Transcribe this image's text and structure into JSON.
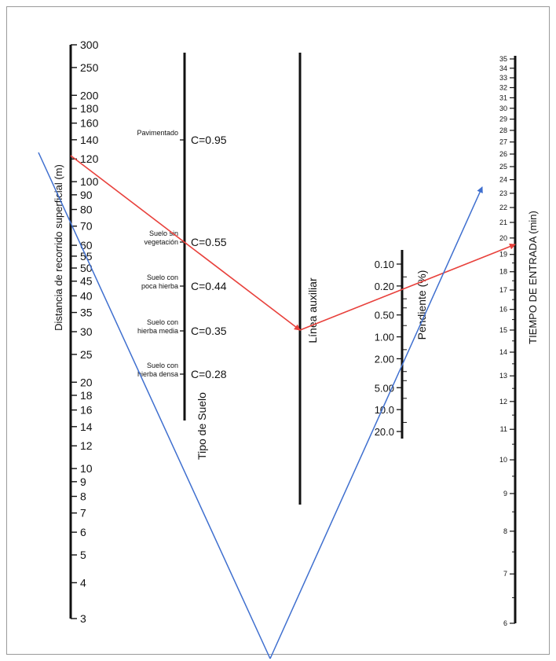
{
  "axes": {
    "distance": {
      "title": "Distancia de recorrido superficial (m)",
      "ticks": [
        {
          "v": 300,
          "label": "300"
        },
        {
          "v": 250,
          "label": "250"
        },
        {
          "v": 200,
          "label": "200"
        },
        {
          "v": 180,
          "label": "180"
        },
        {
          "v": 160,
          "label": "160"
        },
        {
          "v": 140,
          "label": "140"
        },
        {
          "v": 120,
          "label": "120"
        },
        {
          "v": 100,
          "label": "100"
        },
        {
          "v": 90,
          "label": "90"
        },
        {
          "v": 80,
          "label": "80"
        },
        {
          "v": 70,
          "label": "70"
        },
        {
          "v": 60,
          "label": "60"
        },
        {
          "v": 55,
          "label": "55"
        },
        {
          "v": 50,
          "label": "50"
        },
        {
          "v": 45,
          "label": "45"
        },
        {
          "v": 40,
          "label": "40"
        },
        {
          "v": 35,
          "label": "35"
        },
        {
          "v": 30,
          "label": "30"
        },
        {
          "v": 25,
          "label": "25"
        },
        {
          "v": 20,
          "label": "20"
        },
        {
          "v": 18,
          "label": "18"
        },
        {
          "v": 16,
          "label": "16"
        },
        {
          "v": 14,
          "label": "14"
        },
        {
          "v": 12,
          "label": "12"
        },
        {
          "v": 10,
          "label": "10"
        },
        {
          "v": 9,
          "label": "9"
        },
        {
          "v": 8,
          "label": "8"
        },
        {
          "v": 7,
          "label": "7"
        },
        {
          "v": 6,
          "label": "6"
        },
        {
          "v": 5,
          "label": "5"
        },
        {
          "v": 4,
          "label": "4"
        },
        {
          "v": 3,
          "label": "3"
        }
      ]
    },
    "soil": {
      "title": "Tipo de Suelo",
      "items": [
        {
          "name_lines": [
            "Pavimentado"
          ],
          "c": "C=0.95"
        },
        {
          "name_lines": [
            "Suelo sin",
            "vegetación"
          ],
          "c": "C=0.55"
        },
        {
          "name_lines": [
            "Suelo con",
            "poca hierba"
          ],
          "c": "C=0.44"
        },
        {
          "name_lines": [
            "Suelo con",
            "hierba media"
          ],
          "c": "C=0.35"
        },
        {
          "name_lines": [
            "Suelo con",
            "hierba densa"
          ],
          "c": "C=0.28"
        }
      ]
    },
    "auxiliary": {
      "title": "Línea auxiliar"
    },
    "slope": {
      "title": "Pendiente (%)",
      "ticks": [
        {
          "v": 0.1,
          "label": "0.10"
        },
        {
          "v": 0.2,
          "label": "0.20"
        },
        {
          "v": 0.5,
          "label": "0.50"
        },
        {
          "v": 1,
          "label": "1.00"
        },
        {
          "v": 2,
          "label": "2.00"
        },
        {
          "v": 5,
          "label": "5.00"
        },
        {
          "v": 10,
          "label": "10.0"
        },
        {
          "v": 20,
          "label": "20.0"
        }
      ]
    },
    "time": {
      "title": "TIEMPO DE ENTRADA (min)",
      "ticks": [
        {
          "v": 6,
          "label": "6"
        },
        {
          "v": 7,
          "label": "7"
        },
        {
          "v": 8,
          "label": "8"
        },
        {
          "v": 9,
          "label": "9"
        },
        {
          "v": 10,
          "label": "10"
        },
        {
          "v": 11,
          "label": "11"
        },
        {
          "v": 12,
          "label": "12"
        },
        {
          "v": 13,
          "label": "13"
        },
        {
          "v": 14,
          "label": "14"
        },
        {
          "v": 15,
          "label": "15"
        },
        {
          "v": 16,
          "label": "16"
        },
        {
          "v": 17,
          "label": "17"
        },
        {
          "v": 18,
          "label": "18"
        },
        {
          "v": 19,
          "label": "19"
        },
        {
          "v": 20,
          "label": "20"
        },
        {
          "v": 21,
          "label": "21"
        },
        {
          "v": 22,
          "label": "22"
        },
        {
          "v": 23,
          "label": "23"
        },
        {
          "v": 24,
          "label": "24"
        },
        {
          "v": 25,
          "label": "25"
        },
        {
          "v": 26,
          "label": "26"
        },
        {
          "v": 27,
          "label": "27"
        },
        {
          "v": 28,
          "label": "28"
        },
        {
          "v": 29,
          "label": "29"
        },
        {
          "v": 30,
          "label": "30"
        },
        {
          "v": 31,
          "label": "31"
        },
        {
          "v": 32,
          "label": "32"
        },
        {
          "v": 33,
          "label": "33"
        },
        {
          "v": 34,
          "label": "34"
        },
        {
          "v": 35,
          "label": "35"
        }
      ]
    }
  },
  "colors": {
    "axis": "#111111",
    "red_path": "#e8413c",
    "blue_path": "#3f6fcf",
    "frame": "#9a9a9a"
  }
}
